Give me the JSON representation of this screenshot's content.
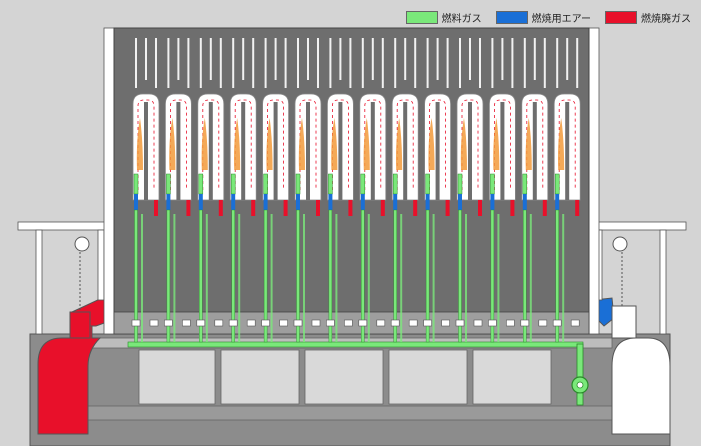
{
  "legend": {
    "fuel_gas": "燃料ガス",
    "combustion_air": "燃焼用エアー",
    "exhaust_gas": "燃焼廃ガス"
  },
  "colors": {
    "background": "#d4d4d4",
    "fuel_gas": "#7ae87a",
    "combustion_air": "#1a6fd6",
    "exhaust_gas": "#e8102a",
    "oven_wall": "#6e6e6e",
    "chamber": "#ffffff",
    "frame": "#ffffff",
    "foundation": "#8c8c8c",
    "flame": "#f29a3a"
  },
  "icons": {
    "flame": "flame-icon",
    "fan": "fan-icon",
    "valve": "valve-icon"
  },
  "diagram": {
    "flue_count": 14
  }
}
